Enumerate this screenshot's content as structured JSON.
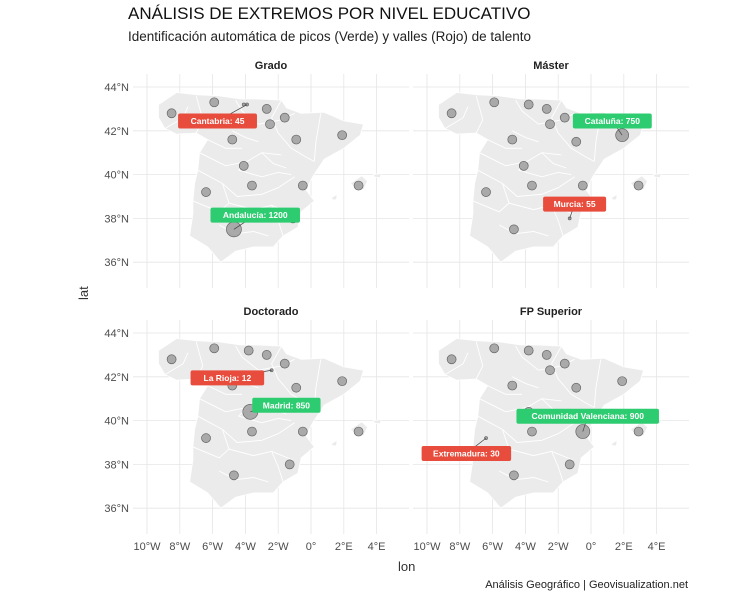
{
  "title": "ANÁLISIS DE EXTREMOS POR NIVEL EDUCATIVO",
  "subtitle": "Identificación automática de picos (Verde) y valles (Rojo) de talento",
  "caption": "Análisis Geográfico | Geovisualization.net",
  "colors": {
    "peak": "#2ecc71",
    "valley": "#e74c3c",
    "point": "#9e9e9e",
    "land": "#ebebeb",
    "grid": "#e5e5e5"
  },
  "chart_data": {
    "type": "scatter",
    "xlabel": "lon",
    "ylabel": "lat",
    "xlim": [
      -11,
      5.5
    ],
    "ylim": [
      34.7,
      44.6
    ],
    "x_ticks": [
      -10,
      -8,
      -6,
      -4,
      -2,
      0,
      2,
      4
    ],
    "x_tick_labels": [
      "10°W",
      "8°W",
      "6°W",
      "4°W",
      "2°W",
      "0°",
      "2°E",
      "4°E"
    ],
    "y_ticks": [
      36,
      38,
      40,
      42,
      44
    ],
    "y_tick_labels": [
      "36°N",
      "38°N",
      "40°N",
      "42°N",
      "44°N"
    ],
    "facets": [
      {
        "name": "Grado",
        "points": [
          {
            "lon": -8.5,
            "lat": 42.8,
            "size": 4.5
          },
          {
            "lon": -5.9,
            "lat": 43.3,
            "size": 4.5
          },
          {
            "lon": -4.1,
            "lat": 43.2,
            "size": 1.5
          },
          {
            "lon": -2.7,
            "lat": 43.0,
            "size": 4.5
          },
          {
            "lon": -2.5,
            "lat": 42.3,
            "size": 4.5
          },
          {
            "lon": -1.6,
            "lat": 42.6,
            "size": 4.5
          },
          {
            "lon": -4.8,
            "lat": 41.6,
            "size": 4.5
          },
          {
            "lon": -0.9,
            "lat": 41.6,
            "size": 4.5
          },
          {
            "lon": 1.9,
            "lat": 41.8,
            "size": 4.5
          },
          {
            "lon": -4.1,
            "lat": 40.4,
            "size": 4.5
          },
          {
            "lon": -6.4,
            "lat": 39.2,
            "size": 4.5
          },
          {
            "lon": -3.6,
            "lat": 39.5,
            "size": 4.5
          },
          {
            "lon": -0.5,
            "lat": 39.5,
            "size": 4.5
          },
          {
            "lon": 2.9,
            "lat": 39.5,
            "size": 4.5
          },
          {
            "lon": -1.1,
            "lat": 38.0,
            "size": 4.5
          },
          {
            "lon": -4.7,
            "lat": 37.5,
            "size": 7.5
          },
          {
            "lon": -3.9,
            "lat": 43.2,
            "size": 1.5
          }
        ],
        "labels": [
          {
            "text": "Cantabria: 45",
            "type": "valley",
            "lon": -3.9,
            "lat": 43.2,
            "label_lon": -5.7,
            "label_lat": 42.45
          },
          {
            "text": "Andalucía: 1200",
            "type": "peak",
            "lon": -4.7,
            "lat": 37.5,
            "label_lon": -3.4,
            "label_lat": 38.15
          }
        ]
      },
      {
        "name": "Máster",
        "points": [
          {
            "lon": -8.5,
            "lat": 42.8,
            "size": 4.5
          },
          {
            "lon": -5.9,
            "lat": 43.3,
            "size": 4.5
          },
          {
            "lon": -3.8,
            "lat": 43.2,
            "size": 4.5
          },
          {
            "lon": -2.7,
            "lat": 43.0,
            "size": 4.5
          },
          {
            "lon": -2.5,
            "lat": 42.3,
            "size": 4.5
          },
          {
            "lon": -1.6,
            "lat": 42.6,
            "size": 4.5
          },
          {
            "lon": -4.8,
            "lat": 41.6,
            "size": 4.5
          },
          {
            "lon": -0.9,
            "lat": 41.5,
            "size": 4.5
          },
          {
            "lon": 1.9,
            "lat": 41.8,
            "size": 6.5
          },
          {
            "lon": -4.1,
            "lat": 40.4,
            "size": 4.5
          },
          {
            "lon": -6.4,
            "lat": 39.2,
            "size": 4.5
          },
          {
            "lon": -3.6,
            "lat": 39.5,
            "size": 4.5
          },
          {
            "lon": -0.5,
            "lat": 39.5,
            "size": 4.5
          },
          {
            "lon": 2.9,
            "lat": 39.5,
            "size": 4.5
          },
          {
            "lon": -1.3,
            "lat": 38.0,
            "size": 1.5
          },
          {
            "lon": -4.7,
            "lat": 37.5,
            "size": 4.5
          }
        ],
        "labels": [
          {
            "text": "Cataluña: 750",
            "type": "peak",
            "lon": 1.9,
            "lat": 41.8,
            "label_lon": 1.3,
            "label_lat": 42.45
          },
          {
            "text": "Murcia: 55",
            "type": "valley",
            "lon": -1.3,
            "lat": 38.0,
            "label_lon": -1.0,
            "label_lat": 38.65
          }
        ]
      },
      {
        "name": "Doctorado",
        "points": [
          {
            "lon": -8.5,
            "lat": 42.8,
            "size": 4.5
          },
          {
            "lon": -5.9,
            "lat": 43.3,
            "size": 4.5
          },
          {
            "lon": -3.8,
            "lat": 43.2,
            "size": 4.5
          },
          {
            "lon": -2.7,
            "lat": 43.0,
            "size": 4.5
          },
          {
            "lon": -2.4,
            "lat": 42.3,
            "size": 1.5
          },
          {
            "lon": -1.6,
            "lat": 42.6,
            "size": 4.5
          },
          {
            "lon": -4.8,
            "lat": 41.6,
            "size": 4.5
          },
          {
            "lon": -0.9,
            "lat": 41.5,
            "size": 4.5
          },
          {
            "lon": 1.9,
            "lat": 41.8,
            "size": 4.5
          },
          {
            "lon": -3.7,
            "lat": 40.4,
            "size": 7.5
          },
          {
            "lon": -6.4,
            "lat": 39.2,
            "size": 4.5
          },
          {
            "lon": -3.6,
            "lat": 39.5,
            "size": 4.5
          },
          {
            "lon": -0.5,
            "lat": 39.5,
            "size": 4.5
          },
          {
            "lon": 2.9,
            "lat": 39.5,
            "size": 4.5
          },
          {
            "lon": -1.3,
            "lat": 38.0,
            "size": 4.5
          },
          {
            "lon": -4.7,
            "lat": 37.5,
            "size": 4.5
          }
        ],
        "labels": [
          {
            "text": "La Rioja: 12",
            "type": "valley",
            "lon": -2.4,
            "lat": 42.3,
            "label_lon": -5.1,
            "label_lat": 41.95
          },
          {
            "text": "Madrid: 850",
            "type": "peak",
            "lon": -3.7,
            "lat": 40.4,
            "label_lon": -1.5,
            "label_lat": 40.7
          }
        ]
      },
      {
        "name": "FP Superior",
        "points": [
          {
            "lon": -8.5,
            "lat": 42.8,
            "size": 4.5
          },
          {
            "lon": -5.9,
            "lat": 43.3,
            "size": 4.5
          },
          {
            "lon": -3.8,
            "lat": 43.2,
            "size": 4.5
          },
          {
            "lon": -2.7,
            "lat": 43.0,
            "size": 4.5
          },
          {
            "lon": -2.5,
            "lat": 42.3,
            "size": 4.5
          },
          {
            "lon": -1.6,
            "lat": 42.6,
            "size": 4.5
          },
          {
            "lon": -4.8,
            "lat": 41.6,
            "size": 4.5
          },
          {
            "lon": -0.9,
            "lat": 41.5,
            "size": 4.5
          },
          {
            "lon": 1.9,
            "lat": 41.8,
            "size": 4.5
          },
          {
            "lon": -3.8,
            "lat": 40.4,
            "size": 4.5
          },
          {
            "lon": -6.4,
            "lat": 39.2,
            "size": 1.5
          },
          {
            "lon": -3.6,
            "lat": 39.5,
            "size": 4.5
          },
          {
            "lon": -0.5,
            "lat": 39.5,
            "size": 7.0
          },
          {
            "lon": 2.9,
            "lat": 39.5,
            "size": 4.5
          },
          {
            "lon": -1.3,
            "lat": 38.0,
            "size": 4.5
          },
          {
            "lon": -4.7,
            "lat": 37.5,
            "size": 4.5
          }
        ],
        "labels": [
          {
            "text": "Comunidad Valenciana: 900",
            "type": "peak",
            "lon": -0.5,
            "lat": 39.5,
            "label_lon": -0.2,
            "label_lat": 40.2
          },
          {
            "text": "Extremadura: 30",
            "type": "valley",
            "lon": -6.4,
            "lat": 39.2,
            "label_lon": -7.6,
            "label_lat": 38.5
          }
        ]
      }
    ]
  }
}
